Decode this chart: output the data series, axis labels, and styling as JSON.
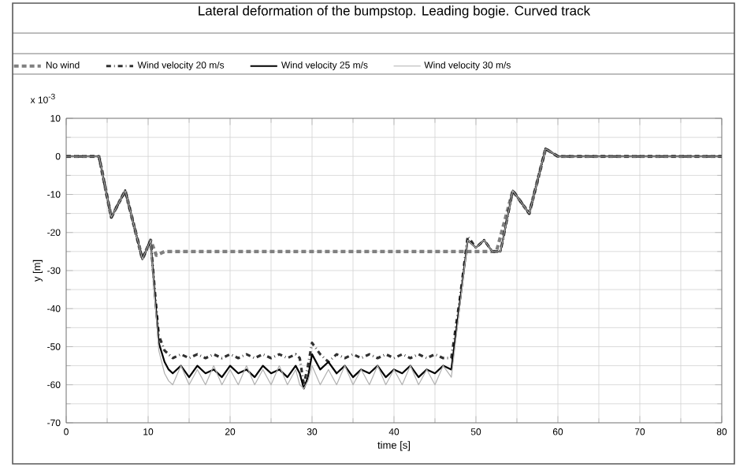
{
  "chart_data": {
    "type": "line",
    "title": "Lateral deformation of the bumpstop. Leading bogie. Curved track",
    "xlabel": "time [s]",
    "ylabel": "y [m]",
    "annotations": [
      "x 10$^{-3}$"
    ],
    "xlim": [
      0,
      80
    ],
    "ylim": [
      -70,
      10
    ],
    "xticks": [
      0,
      10,
      20,
      30,
      40,
      50,
      60,
      70,
      80
    ],
    "yticks": [
      -70,
      -60,
      -50,
      -40,
      -30,
      -20,
      -10,
      0,
      10
    ],
    "grid": true,
    "legend": "top",
    "series": [
      {
        "name": "No wind",
        "color": "#808080",
        "line_style": "dotted",
        "x": [
          0,
          4,
          5.5,
          7.2,
          9.3,
          10.3,
          11,
          12,
          13,
          20,
          30,
          40,
          50,
          52.5,
          54.5,
          56.5,
          58.5,
          60,
          80
        ],
        "values": [
          0,
          0,
          -16,
          -9,
          -27,
          -22,
          -26,
          -25,
          -25,
          -25,
          -25,
          -25,
          -25,
          -25,
          -9,
          -15,
          2,
          0,
          0
        ]
      },
      {
        "name": "Wind velocity 20 m/s",
        "color": "#303030",
        "line_style": "dashed",
        "x": [
          0,
          4,
          5.5,
          7.2,
          9.3,
          10.3,
          10.8,
          11.3,
          12,
          12.5,
          13,
          14,
          15,
          16,
          17,
          18,
          19,
          20,
          21,
          22,
          23,
          24,
          25,
          26,
          27,
          28,
          28.5,
          29,
          29.5,
          30,
          31,
          32,
          33,
          34,
          35,
          36,
          37,
          38,
          39,
          40,
          41,
          42,
          43,
          44,
          45,
          46,
          47,
          48,
          49,
          50,
          51,
          52,
          53,
          54.5,
          56.5,
          58.5,
          60,
          80
        ],
        "values": [
          0,
          0,
          -16,
          -9,
          -27,
          -22,
          -35,
          -47,
          -51,
          -52,
          -53,
          -52,
          -53,
          -52,
          -53,
          -52,
          -53,
          -52,
          -53,
          -52,
          -53,
          -52,
          -53,
          -52,
          -53,
          -52,
          -53,
          -60,
          -55,
          -49,
          -52,
          -54,
          -52,
          -53,
          -52,
          -53,
          -52,
          -53,
          -52,
          -53,
          -52,
          -53,
          -52,
          -53,
          -52,
          -53,
          -53,
          -38,
          -21,
          -24,
          -22,
          -25,
          -25,
          -9,
          -15,
          2,
          0,
          0
        ]
      },
      {
        "name": "Wind velocity 25 m/s",
        "color": "#000000",
        "line_style": "solid",
        "x": [
          0,
          4,
          5.5,
          7.2,
          9.3,
          10.3,
          10.8,
          11.3,
          12,
          12.5,
          13,
          14,
          15,
          16,
          17,
          18,
          19,
          20,
          21,
          22,
          23,
          24,
          25,
          26,
          27,
          28,
          28.5,
          29,
          29.5,
          30,
          31,
          32,
          33,
          34,
          35,
          36,
          37,
          38,
          39,
          40,
          41,
          42,
          43,
          44,
          45,
          46,
          47,
          48,
          49,
          50,
          51,
          52,
          53,
          54.5,
          56.5,
          58.5,
          60,
          80
        ],
        "values": [
          0,
          0,
          -16,
          -9,
          -27,
          -22,
          -36,
          -49,
          -54,
          -56,
          -57,
          -55,
          -58,
          -55,
          -57,
          -56,
          -58,
          -55,
          -57,
          -56,
          -58,
          -55,
          -57,
          -56,
          -58,
          -55,
          -57,
          -61,
          -58,
          -52,
          -56,
          -54,
          -57,
          -55,
          -58,
          -56,
          -57,
          -55,
          -58,
          -56,
          -57,
          -55,
          -58,
          -56,
          -57,
          -55,
          -56,
          -39,
          -22,
          -24,
          -22,
          -25,
          -25,
          -9,
          -15,
          2,
          0,
          0
        ]
      },
      {
        "name": "Wind velocity 30 m/s",
        "color": "#b0b0b0",
        "line_style": "solid",
        "x": [
          0,
          4,
          5.5,
          7.2,
          9.3,
          10.3,
          10.8,
          11.3,
          12,
          12.5,
          13,
          14,
          15,
          16,
          17,
          18,
          19,
          20,
          21,
          22,
          23,
          24,
          25,
          26,
          27,
          28,
          28.5,
          29,
          29.5,
          30,
          31,
          32,
          33,
          34,
          35,
          36,
          37,
          38,
          39,
          40,
          41,
          42,
          43,
          44,
          45,
          46,
          47,
          48,
          49,
          50,
          51,
          52,
          53,
          54.5,
          56.5,
          58.5,
          60,
          80
        ],
        "values": [
          0,
          0,
          -16,
          -9,
          -27,
          -22,
          -37,
          -51,
          -57,
          -59,
          -60,
          -55,
          -60,
          -56,
          -60,
          -55,
          -60,
          -56,
          -60,
          -55,
          -60,
          -56,
          -60,
          -55,
          -60,
          -56,
          -60,
          -61,
          -59,
          -55,
          -60,
          -56,
          -60,
          -55,
          -60,
          -56,
          -60,
          -55,
          -60,
          -56,
          -60,
          -55,
          -60,
          -56,
          -60,
          -55,
          -58,
          -40,
          -22,
          -24,
          -22,
          -25,
          -25,
          -9,
          -15,
          2,
          0,
          0
        ]
      }
    ]
  }
}
